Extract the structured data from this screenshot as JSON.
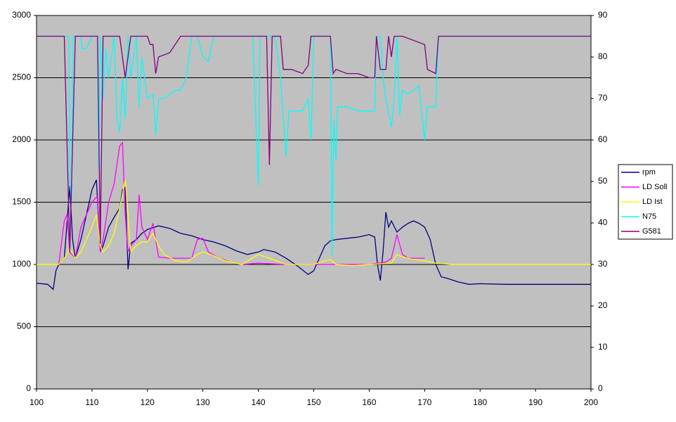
{
  "chart_data": {
    "type": "line",
    "xlim": [
      100,
      200
    ],
    "xticks": [
      100,
      110,
      120,
      130,
      140,
      150,
      160,
      170,
      180,
      190,
      200
    ],
    "ylim": [
      0,
      3000
    ],
    "yticks": [
      0,
      500,
      1000,
      1500,
      2000,
      2500,
      3000
    ],
    "y2lim": [
      0,
      90
    ],
    "y2ticks": [
      0,
      10,
      20,
      30,
      40,
      50,
      60,
      70,
      80,
      90
    ],
    "grid": true,
    "legend": "right",
    "series": [
      {
        "name": "rpm",
        "color": "#000080",
        "x": [
          100,
          102,
          103,
          103.5,
          104,
          105,
          106,
          106.5,
          107,
          108,
          109,
          110,
          110.8,
          111.5,
          112,
          113,
          114,
          115,
          115.5,
          116,
          116.5,
          117,
          118,
          119,
          120,
          122,
          124,
          126,
          128,
          130,
          132,
          134,
          136,
          138,
          140,
          141,
          143,
          145,
          147,
          149,
          150,
          151,
          152,
          153,
          154,
          156,
          158,
          160,
          161,
          161.5,
          162,
          162.5,
          163,
          163.5,
          164,
          165,
          166,
          167,
          168,
          169,
          170,
          171,
          172,
          173,
          174,
          176,
          178,
          180,
          185,
          190,
          195,
          200
        ],
        "values": [
          850,
          840,
          800,
          950,
          1000,
          1050,
          1630,
          1200,
          1050,
          1200,
          1400,
          1600,
          1680,
          1100,
          1150,
          1300,
          1380,
          1450,
          1600,
          1620,
          960,
          1170,
          1200,
          1250,
          1280,
          1310,
          1290,
          1250,
          1230,
          1200,
          1180,
          1150,
          1110,
          1080,
          1100,
          1120,
          1100,
          1050,
          990,
          920,
          950,
          1050,
          1150,
          1190,
          1200,
          1210,
          1220,
          1240,
          1220,
          1000,
          870,
          1100,
          1420,
          1300,
          1350,
          1260,
          1300,
          1330,
          1350,
          1330,
          1300,
          1200,
          1000,
          900,
          890,
          860,
          840,
          845,
          840,
          840,
          840,
          840
        ]
      },
      {
        "name": "LD Soll",
        "color": "#ff00ff",
        "x": [
          104,
          105,
          105.5,
          106,
          107,
          108,
          109,
          110,
          111,
          111.5,
          112,
          113,
          114,
          115,
          115.5,
          116,
          116.5,
          117,
          118,
          118.5,
          119,
          120,
          121,
          122,
          124,
          128,
          129,
          130,
          131,
          133,
          135,
          137,
          140,
          145,
          150,
          155,
          160,
          163,
          164,
          165,
          166,
          167,
          170
        ],
        "values": [
          1000,
          1350,
          1400,
          1100,
          1050,
          1300,
          1400,
          1500,
          1550,
          1100,
          1200,
          1500,
          1650,
          1950,
          1980,
          1400,
          1100,
          1150,
          1200,
          1560,
          1300,
          1200,
          1330,
          1060,
          1050,
          1050,
          1200,
          1210,
          1100,
          1050,
          1020,
          1000,
          1010,
          1000,
          1000,
          1000,
          1000,
          1020,
          1050,
          1240,
          1080,
          1050,
          1050
        ]
      },
      {
        "name": "LD Ist",
        "color": "#ffff00",
        "x": [
          100,
          104,
          105,
          106,
          107,
          108,
          109,
          110,
          110.8,
          111.5,
          112,
          113,
          114,
          115,
          116,
          116.5,
          117,
          118,
          119,
          120,
          121,
          122,
          123,
          125,
          127,
          129,
          130,
          132,
          134,
          137,
          140,
          142,
          145,
          150,
          152,
          153,
          154,
          157,
          160,
          164,
          165,
          166,
          168,
          170,
          172,
          175,
          200
        ],
        "values": [
          1000,
          1000,
          1050,
          1130,
          1050,
          1100,
          1200,
          1300,
          1400,
          1150,
          1100,
          1150,
          1250,
          1450,
          1680,
          1400,
          1100,
          1150,
          1180,
          1180,
          1250,
          1150,
          1080,
          1030,
          1020,
          1080,
          1100,
          1070,
          1030,
          1000,
          1080,
          1050,
          1000,
          1000,
          1030,
          1040,
          1000,
          990,
          1000,
          1010,
          1080,
          1060,
          1040,
          1030,
          1010,
          1000,
          1000
        ]
      },
      {
        "name": "N75",
        "color": "#00ffff",
        "axis": "y2",
        "x": [
          100,
          105.8,
          106,
          106.3,
          106.6,
          108,
          108.2,
          109,
          110,
          111,
          111.2,
          111.5,
          112,
          112.5,
          113,
          114,
          114.5,
          115,
          115.5,
          116,
          116.5,
          117,
          118,
          118.5,
          119,
          120,
          121,
          121.5,
          122,
          123,
          124,
          125,
          126,
          127,
          128,
          129,
          130,
          131,
          132,
          133,
          139,
          140,
          140.3,
          141,
          142,
          143,
          144,
          145,
          145.5,
          147,
          148,
          149,
          149.5,
          150,
          153,
          153.3,
          153.6,
          154,
          154.3,
          156,
          158,
          160,
          161,
          161.3,
          162,
          162.5,
          163,
          164,
          164.5,
          165,
          165.5,
          166,
          167,
          168,
          169,
          169.5,
          170,
          170.5,
          172,
          172.5,
          200
        ],
        "values": [
          85,
          85,
          50,
          45,
          85,
          85,
          82,
          82,
          85,
          85,
          53,
          85,
          70,
          82,
          75,
          85,
          65,
          62,
          75,
          65,
          85,
          75,
          85,
          68,
          80,
          70,
          71,
          61,
          70,
          70,
          71,
          72,
          72,
          75,
          85,
          85,
          80,
          79,
          85,
          85,
          85,
          49,
          85,
          85,
          85,
          85,
          75,
          56,
          67,
          67,
          67,
          70,
          60,
          85,
          85,
          32,
          65,
          55,
          68,
          68,
          67,
          67,
          67,
          85,
          85,
          75,
          70,
          63,
          70,
          85,
          66,
          72,
          71,
          72,
          73,
          66,
          60,
          68,
          68,
          85,
          85
        ]
      },
      {
        "name": "G581",
        "color": "#800080",
        "axis": "y2",
        "x": [
          100,
          105,
          106,
          107,
          111,
          111.5,
          112,
          115,
          116,
          117,
          120,
          120.5,
          121,
          121.5,
          122,
          124,
          126,
          133,
          141.5,
          142,
          142.5,
          144,
          144.5,
          146,
          148,
          149,
          149.5,
          153,
          153.5,
          154,
          156,
          158,
          160,
          161,
          161.3,
          162,
          163,
          163.5,
          164,
          164.5,
          166,
          170,
          170.5,
          172,
          172.5,
          200
        ],
        "values": [
          85,
          85,
          33,
          85,
          85,
          35,
          85,
          85,
          75,
          85,
          85,
          83,
          83,
          76,
          80,
          81,
          85,
          85,
          85,
          54,
          85,
          85,
          77,
          77,
          76,
          78,
          85,
          85,
          76,
          77,
          76,
          76,
          75,
          75,
          85,
          77,
          77,
          85,
          80,
          85,
          85,
          83,
          77,
          76,
          85,
          85
        ]
      }
    ]
  }
}
